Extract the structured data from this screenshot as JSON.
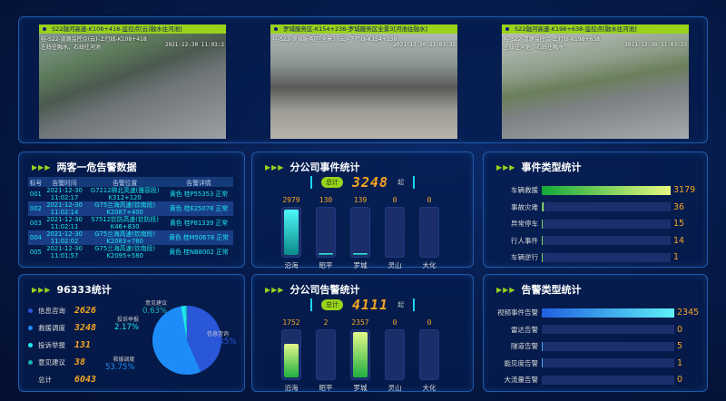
{
  "cameras": [
    {
      "title": "S22融河高速-K108+418-监控点[云]融水往河池]",
      "overlay1": "桂-S22-道路监控点(云)-上行线-K108+418",
      "overlay2": "左线往融水，右线往河池",
      "timestamp": "2021-12-30 11:03:2"
    },
    {
      "title": "罗城服务区-K154+238-罗城服务区全景3[河池往融水]",
      "overlay1": "桂-S22-罗城服务区(全景3)(云)-下行线-K154+238",
      "overlay2": "",
      "timestamp": "2021-12-30 11:03:32"
    },
    {
      "title": "S22融河高速-K198+638-监控点[融水往河池]",
      "overlay1": "桂-S22-道路监控点-上行线-K198+638",
      "overlay2": "左线往河池，右线往融水",
      "timestamp": "2021-12-30 11:03:33"
    }
  ],
  "alarms": {
    "title": "两客一危告警数据",
    "headers": [
      "标号",
      "告警时间",
      "告警位置",
      "告警详情"
    ],
    "rows": [
      {
        "id": "001",
        "date": "2021-12-30",
        "time": "11:02:17",
        "road": "G7212柳北高速(雒容段)",
        "km": "K312+120",
        "detail": "黄色 桂P55353 正常"
      },
      {
        "id": "002",
        "date": "2021-12-30",
        "time": "11:02:14",
        "road": "G75兰海高速(钦南段)",
        "km": "K2087+400",
        "detail": "黄色 桂E25078 正常"
      },
      {
        "id": "003",
        "date": "2021-12-30",
        "time": "11:02:11",
        "road": "S7512钦防高速(钦防段)",
        "km": "K46+830",
        "detail": "黄色 桂P81339 正常"
      },
      {
        "id": "004",
        "date": "2021-12-30",
        "time": "11:02:02",
        "road": "G75兰海高速(钦南段)",
        "km": "K2083+760",
        "detail": "黄色 桂M50678 正常"
      },
      {
        "id": "005",
        "date": "2021-12-30",
        "time": "11:01:57",
        "road": "G75兰海高速(钦南段)",
        "km": "K2095+580",
        "detail": "黄色 桂NB8002 正常"
      }
    ]
  },
  "branch_events": {
    "title": "分公司事件统计",
    "total_label": "总计",
    "total": "3248",
    "unit": "起",
    "chart_data": {
      "type": "bar",
      "categories": [
        "沿海",
        "昭平",
        "罗城",
        "灵山",
        "大化"
      ],
      "values": [
        2979,
        130,
        139,
        0,
        0
      ]
    }
  },
  "event_types": {
    "title": "事件类型统计",
    "chart_data": {
      "type": "bar",
      "orientation": "horizontal",
      "categories": [
        "车辆救援",
        "事故灾难",
        "异常停车",
        "行人事件",
        "车辆逆行"
      ],
      "values": [
        3179,
        36,
        15,
        14,
        1
      ]
    }
  },
  "hotline": {
    "title": "96333统计",
    "items": [
      {
        "name": "信息咨询",
        "value": "2626",
        "color": "#2a56d8"
      },
      {
        "name": "救援调度",
        "value": "3248",
        "color": "#1e8cf8"
      },
      {
        "name": "投诉举报",
        "value": "131",
        "color": "#21e8f0"
      },
      {
        "name": "意见建议",
        "value": "38",
        "color": "#17b3b3"
      }
    ],
    "total_label": "总计",
    "total": "6043",
    "chart_data": {
      "type": "pie",
      "labels": [
        "信息咨询",
        "救援调度",
        "投诉举报",
        "意见建议"
      ],
      "values": [
        43.45,
        53.75,
        2.17,
        0.63
      ],
      "pct": [
        "43.45%",
        "53.75%",
        "2.17%",
        "0.63%"
      ]
    }
  },
  "branch_alarms": {
    "title": "分公司告警统计",
    "total_label": "总计",
    "total": "4111",
    "unit": "起",
    "chart_data": {
      "type": "bar",
      "categories": [
        "沿海",
        "昭平",
        "罗城",
        "灵山",
        "大化"
      ],
      "values": [
        1752,
        2,
        2357,
        0,
        0
      ]
    }
  },
  "alarm_types": {
    "title": "告警类型统计",
    "chart_data": {
      "type": "bar",
      "orientation": "horizontal",
      "categories": [
        "视频事件告警",
        "雷达告警",
        "隧道告警",
        "能见度告警",
        "大流量告警"
      ],
      "values": [
        2345,
        0,
        5,
        1,
        0
      ]
    }
  }
}
